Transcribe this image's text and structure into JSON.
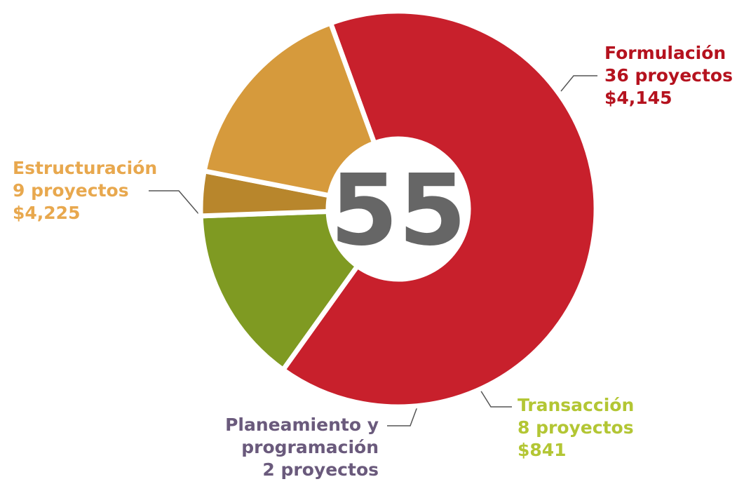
{
  "chart_data": {
    "type": "donut",
    "total": 55,
    "categories": [
      "Formulación",
      "Transacción",
      "Planeamiento y programación",
      "Estructuración"
    ],
    "values": [
      36,
      8,
      2,
      9
    ],
    "value_labels": [
      "36 proyectos",
      "8 proyectos",
      "2 proyectos",
      "9 proyectos"
    ],
    "amounts": [
      4145,
      841,
      null,
      4225
    ],
    "amount_labels": [
      "$4,145",
      "$841",
      null,
      "$4,225"
    ],
    "colors": [
      "#c8202c",
      "#7f9a22",
      "#b8862c",
      "#d69a3c"
    ],
    "label_colors": [
      "#b5121e",
      "#b3c634",
      "#6a5a7c",
      "#e8a84e"
    ]
  }
}
